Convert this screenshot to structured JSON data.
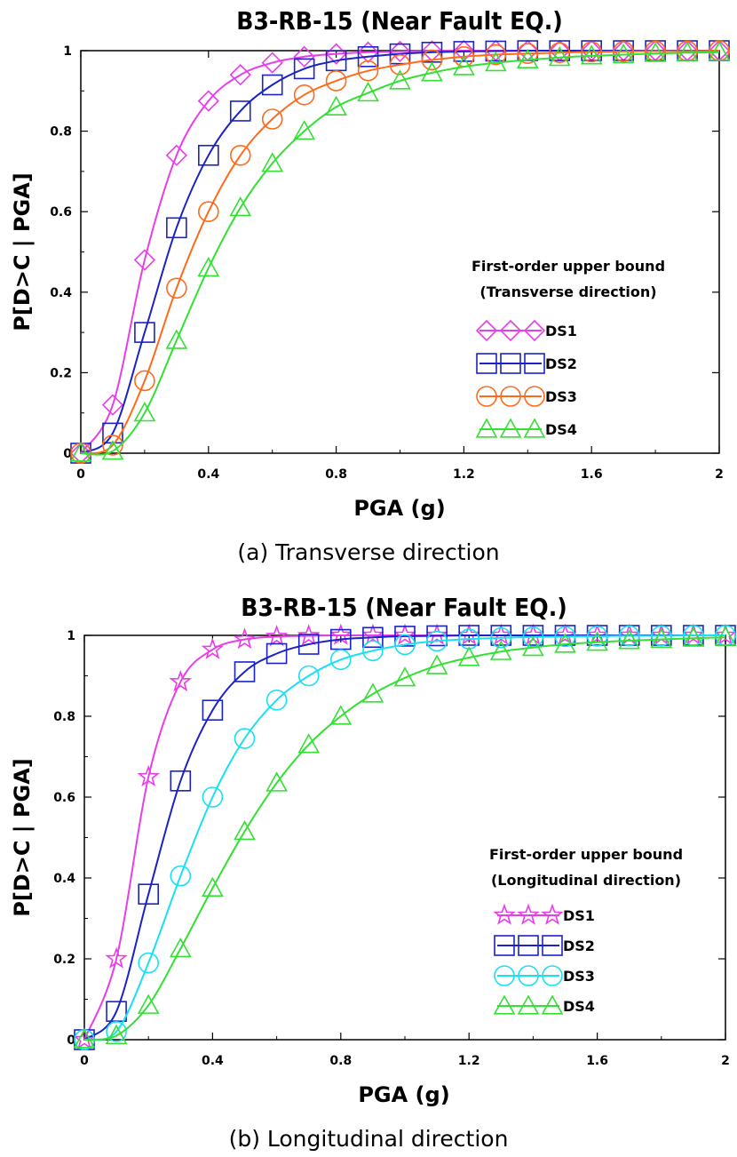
{
  "chart_data": [
    {
      "type": "line",
      "title": "B3-RB-15 (Near Fault EQ.)",
      "caption": "(a) Transverse direction",
      "xlabel": "PGA (g)",
      "ylabel": "P[D>C | PGA]",
      "xlim": [
        0,
        2
      ],
      "ylim": [
        0,
        1
      ],
      "xticks": [
        "0",
        "0.4",
        "0.8",
        "1.2",
        "1.6",
        "2"
      ],
      "yticks": [
        "0",
        "0.2",
        "0.4",
        "0.6",
        "0.8",
        "1"
      ],
      "legend_title": [
        "First-order upper bound",
        "(Transverse direction)"
      ],
      "legend_position": "lower-right",
      "x": [
        0,
        0.1,
        0.2,
        0.3,
        0.4,
        0.5,
        0.6,
        0.7,
        0.8,
        0.9,
        1.0,
        1.1,
        1.2,
        1.3,
        1.4,
        1.5,
        1.6,
        1.7,
        1.8,
        1.9,
        2.0
      ],
      "series": [
        {
          "name": "DS1",
          "color": "#e83ee8",
          "marker": "diamond",
          "values": [
            0.0,
            0.12,
            0.48,
            0.74,
            0.875,
            0.94,
            0.97,
            0.985,
            0.992,
            0.996,
            0.998,
            0.999,
            1.0,
            1.0,
            1.0,
            1.0,
            1.0,
            1.0,
            1.0,
            1.0,
            1.0
          ]
        },
        {
          "name": "DS2",
          "color": "#1a22c8",
          "marker": "square",
          "values": [
            0.0,
            0.05,
            0.3,
            0.56,
            0.74,
            0.85,
            0.915,
            0.955,
            0.975,
            0.985,
            0.992,
            0.996,
            0.998,
            0.999,
            1.0,
            1.0,
            1.0,
            1.0,
            1.0,
            1.0,
            1.0
          ]
        },
        {
          "name": "DS3",
          "color": "#ff6a1a",
          "marker": "circle",
          "values": [
            0.0,
            0.02,
            0.18,
            0.41,
            0.6,
            0.74,
            0.83,
            0.89,
            0.925,
            0.95,
            0.965,
            0.977,
            0.985,
            0.99,
            0.993,
            0.995,
            0.997,
            0.998,
            0.999,
            0.999,
            1.0
          ]
        },
        {
          "name": "DS4",
          "color": "#33e033",
          "marker": "triangle",
          "values": [
            0.0,
            0.005,
            0.1,
            0.28,
            0.46,
            0.61,
            0.72,
            0.8,
            0.86,
            0.895,
            0.925,
            0.945,
            0.96,
            0.97,
            0.977,
            0.983,
            0.987,
            0.99,
            0.993,
            0.995,
            0.996
          ]
        }
      ]
    },
    {
      "type": "line",
      "title": "B3-RB-15 (Near Fault EQ.)",
      "caption": "(b) Longitudinal direction",
      "xlabel": "PGA (g)",
      "ylabel": "P[D>C | PGA]",
      "xlim": [
        0,
        2
      ],
      "ylim": [
        0,
        1
      ],
      "xticks": [
        "0",
        "0.4",
        "0.8",
        "1.2",
        "1.6",
        "2"
      ],
      "yticks": [
        "0",
        "0.2",
        "0.4",
        "0.6",
        "0.8",
        "1"
      ],
      "legend_title": [
        "First-order upper bound",
        "(Longitudinal direction)"
      ],
      "legend_position": "lower-right",
      "x": [
        0,
        0.1,
        0.2,
        0.3,
        0.4,
        0.5,
        0.6,
        0.7,
        0.8,
        0.9,
        1.0,
        1.1,
        1.2,
        1.3,
        1.4,
        1.5,
        1.6,
        1.7,
        1.8,
        1.9,
        2.0
      ],
      "series": [
        {
          "name": "DS1",
          "color": "#e83ee8",
          "marker": "star",
          "values": [
            0.0,
            0.2,
            0.65,
            0.885,
            0.965,
            0.99,
            0.997,
            0.999,
            1.0,
            1.0,
            1.0,
            1.0,
            1.0,
            1.0,
            1.0,
            1.0,
            1.0,
            1.0,
            1.0,
            1.0,
            1.0
          ]
        },
        {
          "name": "DS2",
          "color": "#1a22c8",
          "marker": "square",
          "values": [
            0.0,
            0.07,
            0.36,
            0.64,
            0.815,
            0.91,
            0.955,
            0.978,
            0.99,
            0.995,
            0.998,
            0.999,
            1.0,
            1.0,
            1.0,
            1.0,
            1.0,
            1.0,
            1.0,
            1.0,
            1.0
          ]
        },
        {
          "name": "DS3",
          "color": "#19e0f0",
          "marker": "circle",
          "values": [
            0.0,
            0.02,
            0.19,
            0.405,
            0.6,
            0.745,
            0.84,
            0.9,
            0.94,
            0.962,
            0.977,
            0.986,
            0.991,
            0.994,
            0.996,
            0.997,
            0.998,
            0.999,
            0.999,
            1.0,
            1.0
          ]
        },
        {
          "name": "DS4",
          "color": "#33e033",
          "marker": "triangle",
          "values": [
            0.0,
            0.01,
            0.085,
            0.225,
            0.375,
            0.515,
            0.635,
            0.73,
            0.8,
            0.855,
            0.895,
            0.925,
            0.945,
            0.96,
            0.97,
            0.978,
            0.983,
            0.987,
            0.99,
            0.993,
            0.995
          ]
        }
      ]
    }
  ]
}
